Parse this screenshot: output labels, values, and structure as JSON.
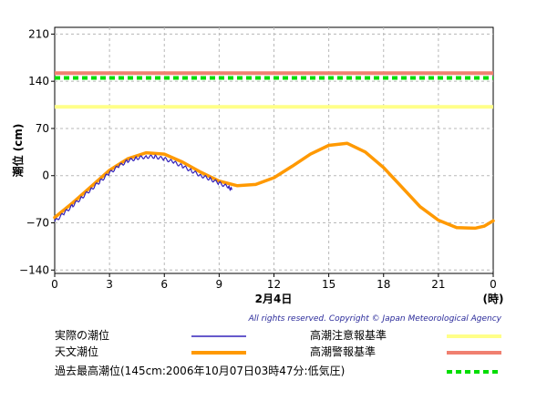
{
  "chart_data": {
    "type": "line",
    "ylabel": "潮位 (cm)",
    "xlabel": "2月4日",
    "x_unit_label": "(時)",
    "xlim": [
      0,
      24
    ],
    "ylim": [
      -145,
      220
    ],
    "x_ticks": [
      "0",
      "3",
      "6",
      "9",
      "12",
      "15",
      "18",
      "21",
      "0"
    ],
    "x_tick_values": [
      0,
      3,
      6,
      9,
      12,
      15,
      18,
      21,
      24
    ],
    "y_ticks": [
      "210",
      "140",
      "70",
      "0",
      "−70",
      "−140"
    ],
    "y_tick_values": [
      210,
      140,
      70,
      0,
      -70,
      -140
    ],
    "grid": true,
    "series": [
      {
        "name": "実際の潮位",
        "color": "#3322bb",
        "x": [
          0,
          0.5,
          1,
          1.5,
          2,
          2.5,
          3,
          3.5,
          4,
          4.5,
          5,
          5.5,
          6,
          6.5,
          7,
          7.5,
          8,
          8.5,
          9,
          9.5,
          9.7
        ],
        "y": [
          -68,
          -56,
          -44,
          -32,
          -20,
          -8,
          4,
          14,
          22,
          26,
          28,
          28,
          25,
          20,
          14,
          7,
          0,
          -5,
          -11,
          -17,
          -21
        ]
      },
      {
        "name": "天文潮位",
        "color": "#ff9900",
        "x": [
          0,
          1,
          2,
          3,
          4,
          5,
          6,
          7,
          8,
          9,
          10,
          11,
          12,
          13,
          14,
          15,
          16,
          17,
          18,
          19,
          20,
          21,
          22,
          23,
          23.5,
          24
        ],
        "y": [
          -62,
          -40,
          -16,
          8,
          25,
          34,
          32,
          20,
          5,
          -8,
          -15,
          -13,
          -3,
          14,
          32,
          45,
          48,
          35,
          12,
          -17,
          -46,
          -66,
          -77,
          -78,
          -75,
          -67
        ]
      }
    ],
    "reference_lines": [
      {
        "name": "高潮注意報基準",
        "value": 102,
        "color": "#ffff88"
      },
      {
        "name": "高潮警報基準",
        "value": 152,
        "color": "#f08070"
      },
      {
        "name": "過去最高潮位(145cm:2006年10月07日03時47分:低気圧)",
        "value": 145,
        "color": "#00dd00"
      }
    ]
  },
  "copyright": "All rights reserved. Copyright © Japan Meteorological Agency",
  "legend": {
    "actual": "実際の潮位",
    "astronomical": "天文潮位",
    "record": "過去最高潮位(145cm:2006年10月07日03時47分:低気圧)",
    "caution": "高潮注意報基準",
    "warning": "高潮警報基準"
  }
}
